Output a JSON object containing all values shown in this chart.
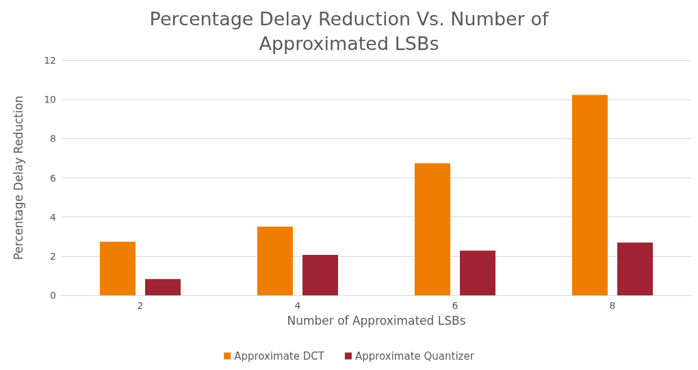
{
  "chart_data": {
    "type": "bar",
    "title": "Percentage Delay Reduction Vs. Number of\nApproximated LSBs",
    "xlabel": "Number of Approximated LSBs",
    "ylabel": "Percentage Delay Reduction",
    "categories": [
      "2",
      "4",
      "6",
      "8"
    ],
    "series": [
      {
        "name": "Approximate DCT",
        "color": "#ef7d00",
        "values": [
          2.74,
          3.51,
          6.74,
          10.23
        ]
      },
      {
        "name": "Approximate Quantizer",
        "color": "#a02333",
        "values": [
          0.83,
          2.06,
          2.28,
          2.69
        ]
      }
    ],
    "ylim": [
      0,
      12
    ],
    "yticks": [
      0,
      2,
      4,
      6,
      8,
      10,
      12
    ],
    "grid": "y",
    "legend": "bottom"
  }
}
